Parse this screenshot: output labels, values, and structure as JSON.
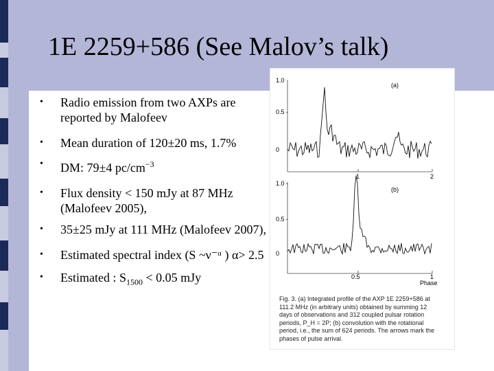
{
  "slide": {
    "title": "1E 2259+586  (See Malov’s talk)",
    "bullets": [
      {
        "text": "Radio emission from two AXPs are reported by Malofeev"
      },
      {
        "text": "Mean duration of 120±20 ms, 1.7%"
      },
      {
        "text_main": "DM: 79±4 pc/cm",
        "sup": "−3"
      },
      {
        "text": "Flux density < 150 mJy at 87 MHz (Malofeev 2005),"
      },
      {
        "text": "35±25 mJy at 111 MHz (Malofeev 2007),"
      },
      {
        "text": "Estimated  spectral index (S ~ν⁻ᵅ ) α> 2.5"
      },
      {
        "text_main": "Estimated : S",
        "sub": "1500",
        "text_after": " < 0.05 mJy"
      }
    ]
  },
  "figure": {
    "panel_a": {
      "label": "(a)",
      "ytick_top": "1.0",
      "ytick_mid": "0.5 -",
      "ytick_zero": "0",
      "xticks": [
        "1",
        "2"
      ]
    },
    "panel_b": {
      "label": "(b)",
      "ytick_top": "1.0 -",
      "ytick_mid": "0.5 -",
      "ytick_zero": "0",
      "xticks": [
        "0.5",
        "1"
      ],
      "xlabel": "Phase"
    },
    "caption": "Fig. 3. (a) Integrated profile of the AXP 1E 2259+586 at 111.2 MHz (in arbitrary units) obtained by summing 12 days of observations and 312 coupled pulsar rotation periods, P_H = 2P; (b) convolution with the rotational period, i.e., the sum of 624 periods. The arrows mark the phases of pulse arrival."
  },
  "colors": {
    "background": "#b4b6d8",
    "accent_bar": "#1c2a5a",
    "content": "#ffffff"
  }
}
